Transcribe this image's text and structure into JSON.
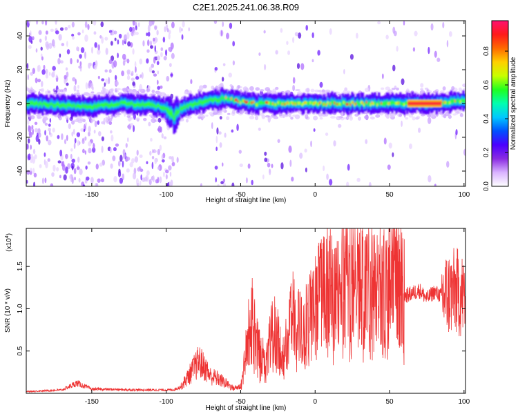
{
  "title": "C2E1.2025.241.06.38.R09",
  "chart_data": [
    {
      "type": "heatmap",
      "xlabel": "Height of straight line (km)",
      "ylabel": "Frequency (Hz)",
      "xlim": [
        -194,
        101
      ],
      "ylim": [
        -49,
        49
      ],
      "xticks": [
        -150,
        -100,
        -50,
        0,
        50,
        100
      ],
      "yticks": [
        -40,
        -20,
        0,
        20,
        40
      ],
      "colorbar": {
        "label": "Normalized spectral amplitude",
        "range": [
          0,
          0.98
        ],
        "ticks": [
          0.0,
          0.2,
          0.4,
          0.6,
          0.8
        ],
        "colors": [
          "#ffffff",
          "#d9b3ff",
          "#8a2be2",
          "#4b00ff",
          "#0050ff",
          "#00c8ff",
          "#00ffb0",
          "#20ff20",
          "#c8ff00",
          "#ffd000",
          "#ff6a00",
          "#ff1a1a",
          "#ff1070"
        ]
      },
      "ridge": {
        "x": [
          -190,
          -170,
          -150,
          -130,
          -110,
          -100,
          -95,
          -90,
          -80,
          -70,
          -60,
          -50,
          -40,
          -20,
          0,
          20,
          40,
          60,
          80,
          90,
          100
        ],
        "y": [
          0,
          -1,
          -2,
          0,
          -1,
          -3,
          -8,
          -3,
          0,
          2,
          3,
          1,
          0,
          0,
          0,
          0,
          0,
          0,
          0,
          1,
          2
        ]
      }
    },
    {
      "type": "line",
      "xlabel": "Height of straight line (km)",
      "ylabel": "SNR (10 * v/v)",
      "multiplier": "(x10",
      "multiplier_exp": "4",
      "multiplier_close": ")",
      "xlim": [
        -194,
        101
      ],
      "ylim": [
        0,
        1.95
      ],
      "xticks": [
        -150,
        -100,
        -50,
        0,
        50,
        100
      ],
      "yticks": [
        0.5,
        1.0,
        1.5
      ],
      "color": "#ee3333",
      "envelope": {
        "x": [
          -194,
          -170,
          -160,
          -150,
          -120,
          -95,
          -90,
          -82,
          -78,
          -74,
          -70,
          -66,
          -60,
          -55,
          -50,
          -47,
          -45,
          -42,
          -38,
          -33,
          -28,
          -22,
          -15,
          -8,
          0,
          8,
          15,
          22,
          30,
          35,
          40,
          45,
          50,
          55,
          60,
          65,
          70,
          75,
          80,
          85,
          90,
          95,
          100
        ],
        "y": [
          0.02,
          0.04,
          0.12,
          0.05,
          0.04,
          0.04,
          0.08,
          0.28,
          0.38,
          0.3,
          0.2,
          0.18,
          0.12,
          0.06,
          0.08,
          0.45,
          0.7,
          0.85,
          0.5,
          0.35,
          0.8,
          0.45,
          0.95,
          0.7,
          1.05,
          1.25,
          1.15,
          1.3,
          1.25,
          1.4,
          1.2,
          1.25,
          1.3,
          1.3,
          1.15,
          1.18,
          1.22,
          1.12,
          1.2,
          1.15,
          1.18,
          1.2,
          1.15
        ]
      }
    }
  ]
}
